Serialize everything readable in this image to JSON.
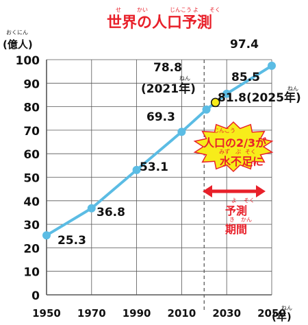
{
  "title": {
    "text": "世界の人口予測",
    "furigana": [
      "せ",
      "かい",
      "じんこう",
      "よ",
      "そく"
    ]
  },
  "y_axis": {
    "unit_label": "(億人)",
    "unit_furigana": "おくにん",
    "ticks": [
      "0",
      "10",
      "20",
      "30",
      "40",
      "50",
      "60",
      "70",
      "80",
      "90",
      "100"
    ]
  },
  "x_axis": {
    "ticks": [
      "1950",
      "1970",
      "1990",
      "2010",
      "2030",
      "2050"
    ],
    "unit_label": "(年)",
    "unit_furigana": "ねん"
  },
  "annotations": {
    "label_2021_value": "78.8",
    "label_2021_year": "(2021年)",
    "label_2021_furigana": "ねん",
    "label_2025": "81.8(2025年)",
    "label_2025_furigana": "ねん",
    "burst_line1": "人口の2/3が",
    "burst_line1_furigana": "じんこう",
    "burst_line2": "水不足に",
    "burst_line2_furigana": [
      "みず",
      "ぶ",
      "そく"
    ],
    "period_line1": "予測",
    "period_line1_furigana": [
      "よ",
      "そく"
    ],
    "period_line2": "期間",
    "period_line2_furigana": [
      "き",
      "かん"
    ]
  },
  "colors": {
    "line": "#5bbce4",
    "accent_red": "#e8202a",
    "burst_fill": "#f7ec1a",
    "highlight_point": "#f7ec1a",
    "grid": "#555555"
  },
  "chart_data": {
    "type": "line",
    "title": "世界の人口予測",
    "xlabel": "(年)",
    "ylabel": "(億人)",
    "xlim": [
      1950,
      2050
    ],
    "ylim": [
      0,
      100
    ],
    "grid": true,
    "x_ticks": [
      1950,
      1970,
      1990,
      2010,
      2030,
      2050
    ],
    "y_ticks": [
      0,
      10,
      20,
      30,
      40,
      50,
      60,
      70,
      80,
      90,
      100
    ],
    "projection_start": 2020,
    "series": [
      {
        "points": [
          {
            "x": 1950,
            "y": 25.3,
            "label": "25.3"
          },
          {
            "x": 1970,
            "y": 36.8,
            "label": "36.8"
          },
          {
            "x": 1990,
            "y": 53.1,
            "label": "53.1"
          },
          {
            "x": 2010,
            "y": 69.3,
            "label": "69.3"
          },
          {
            "x": 2021,
            "y": 78.8,
            "label": ""
          },
          {
            "x": 2030,
            "y": 85.5,
            "label": "85.5"
          },
          {
            "x": 2050,
            "y": 97.4,
            "label": "97.4"
          }
        ]
      }
    ],
    "highlight": {
      "x": 2025,
      "y": 81.8,
      "label": "81.8(2025年)"
    }
  }
}
